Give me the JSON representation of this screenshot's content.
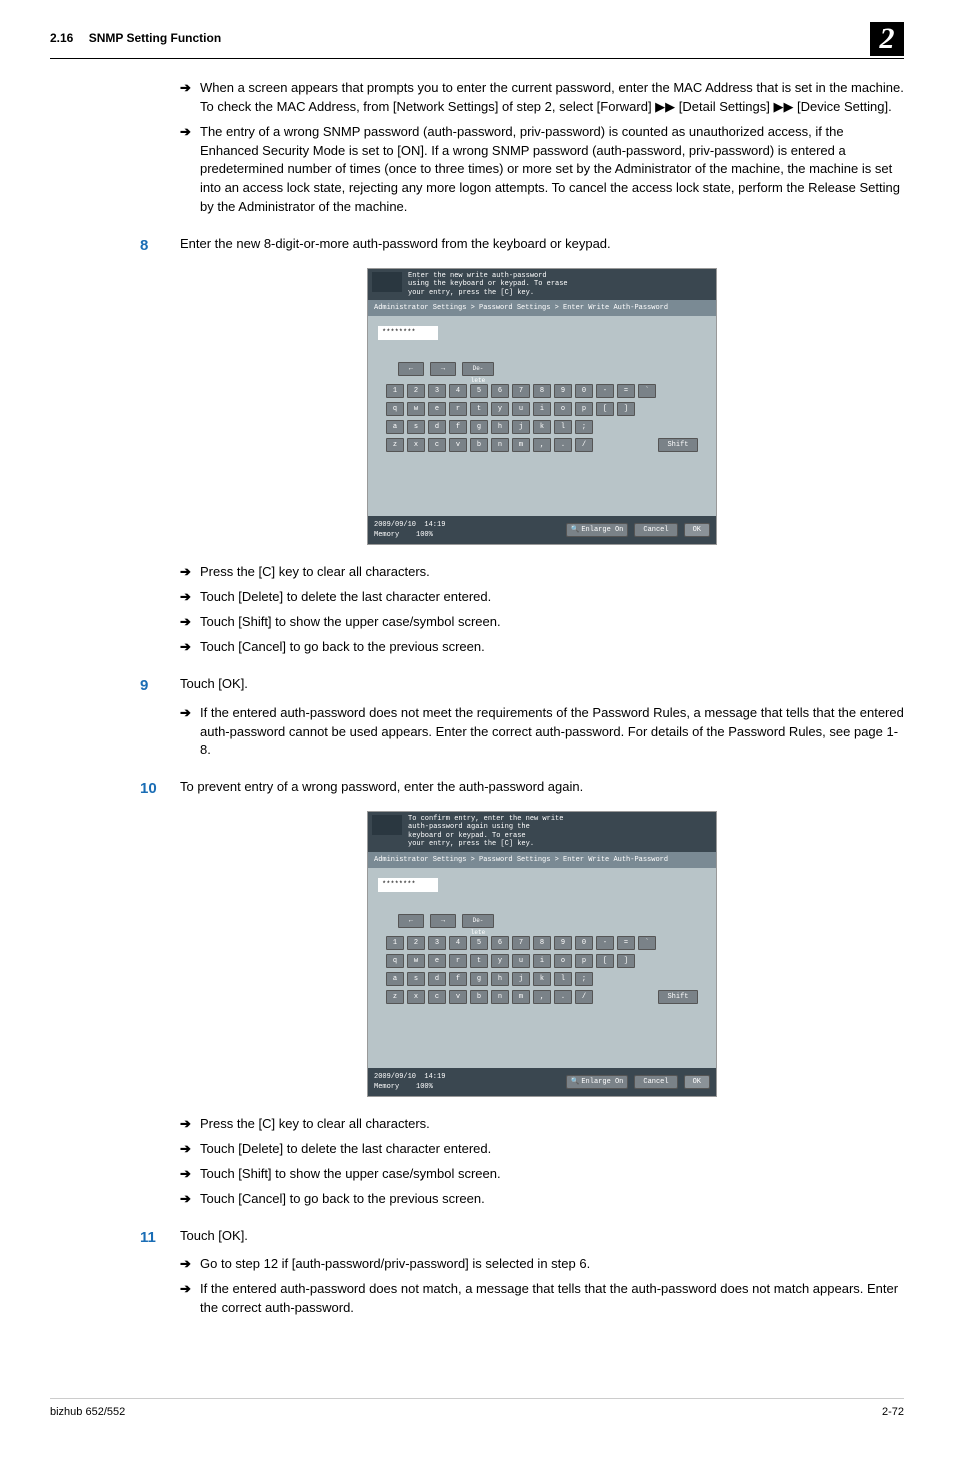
{
  "header": {
    "section": "2.16",
    "title": "SNMP Setting Function",
    "chapter_num": "2"
  },
  "intro_arrows": [
    "When a screen appears that prompts you to enter the current password, enter the MAC Address that is set in the machine. To check the MAC Address, from [Network Settings] of step 2, select [Forward] ▶▶ [Detail Settings] ▶▶ [Device Setting].",
    "The entry of a wrong SNMP password (auth-password, priv-password) is counted as unauthorized access, if the Enhanced Security Mode is set to [ON]. If a wrong SNMP password (auth-password, priv-password) is entered a predetermined number of times (once to three times) or more set by the Administrator of the machine, the machine is set into an access lock state, rejecting any more logon attempts. To cancel the access lock state, perform the Release Setting by the Administrator of the machine."
  ],
  "steps": {
    "s8": {
      "num": "8",
      "text": "Enter the new 8-digit-or-more auth-password from the keyboard or keypad.",
      "sub": [
        "Press the [C] key to clear all characters.",
        "Touch [Delete] to delete the last character entered.",
        "Touch [Shift] to show the upper case/symbol screen.",
        "Touch [Cancel] to go back to the previous screen."
      ]
    },
    "s9": {
      "num": "9",
      "text": "Touch [OK].",
      "sub": [
        "If the entered auth-password does not meet the requirements of the Password Rules, a message that tells that the entered auth-password cannot be used appears. Enter the correct auth-password. For details of the Password Rules, see page 1-8."
      ]
    },
    "s10": {
      "num": "10",
      "text": "To prevent entry of a wrong password, enter the auth-password again.",
      "sub": [
        "Press the [C] key to clear all characters.",
        "Touch [Delete] to delete the last character entered.",
        "Touch [Shift] to show the upper case/symbol screen.",
        "Touch [Cancel] to go back to the previous screen."
      ]
    },
    "s11": {
      "num": "11",
      "text": "Touch [OK].",
      "sub": [
        "Go to step 12 if [auth-password/priv-password] is selected in step 6.",
        "If the entered auth-password does not match, a message that tells that the auth-password does not match appears. Enter the correct auth-password."
      ]
    }
  },
  "screenshot_a": {
    "top": "Enter the new write auth-password\nusing the keyboard or keypad. To erase\nyour entry, press the [C] key.",
    "breadcrumb": "Administrator Settings > Password Settings > Enter Write Auth-Password",
    "pw_masked": "********",
    "delete_btn": "De-\nlete",
    "rows": [
      [
        "1",
        "2",
        "3",
        "4",
        "5",
        "6",
        "7",
        "8",
        "9",
        "0",
        "-",
        "=",
        "`"
      ],
      [
        "q",
        "w",
        "e",
        "r",
        "t",
        "y",
        "u",
        "i",
        "o",
        "p",
        "[",
        "]"
      ],
      [
        "a",
        "s",
        "d",
        "f",
        "g",
        "h",
        "j",
        "k",
        "l",
        ";"
      ],
      [
        "z",
        "x",
        "c",
        "v",
        "b",
        "n",
        "m",
        ",",
        ".",
        "/"
      ]
    ],
    "shift": "Shift",
    "date": "2009/09/10",
    "time": "14:19",
    "mem": "Memory",
    "mempct": "100%",
    "enlarge": "Enlarge\nOn",
    "cancel": "Cancel",
    "ok": "OK"
  },
  "screenshot_b": {
    "top": "To confirm entry, enter the new write\nauth-password again using the\nkeyboard or keypad. To erase\nyour entry, press the [C] key.",
    "breadcrumb": "Administrator Settings > Password Settings > Enter Write Auth-Password",
    "pw_masked": "********",
    "delete_btn": "De-\nlete",
    "rows": [
      [
        "1",
        "2",
        "3",
        "4",
        "5",
        "6",
        "7",
        "8",
        "9",
        "0",
        "-",
        "=",
        "`"
      ],
      [
        "q",
        "w",
        "e",
        "r",
        "t",
        "y",
        "u",
        "i",
        "o",
        "p",
        "[",
        "]"
      ],
      [
        "a",
        "s",
        "d",
        "f",
        "g",
        "h",
        "j",
        "k",
        "l",
        ";"
      ],
      [
        "z",
        "x",
        "c",
        "v",
        "b",
        "n",
        "m",
        ",",
        ".",
        "/"
      ]
    ],
    "shift": "Shift",
    "date": "2009/09/10",
    "time": "14:19",
    "mem": "Memory",
    "mempct": "100%",
    "enlarge": "Enlarge\nOn",
    "cancel": "Cancel",
    "ok": "OK"
  },
  "footer": {
    "left": "bizhub 652/552",
    "right": "2-72"
  },
  "colors": {
    "step_num": "#1a6db5",
    "ss_dark": "#3a4750",
    "ss_mid": "#7a8a94",
    "ss_light": "#b8c4c8",
    "ss_btn": "#7a8288"
  }
}
